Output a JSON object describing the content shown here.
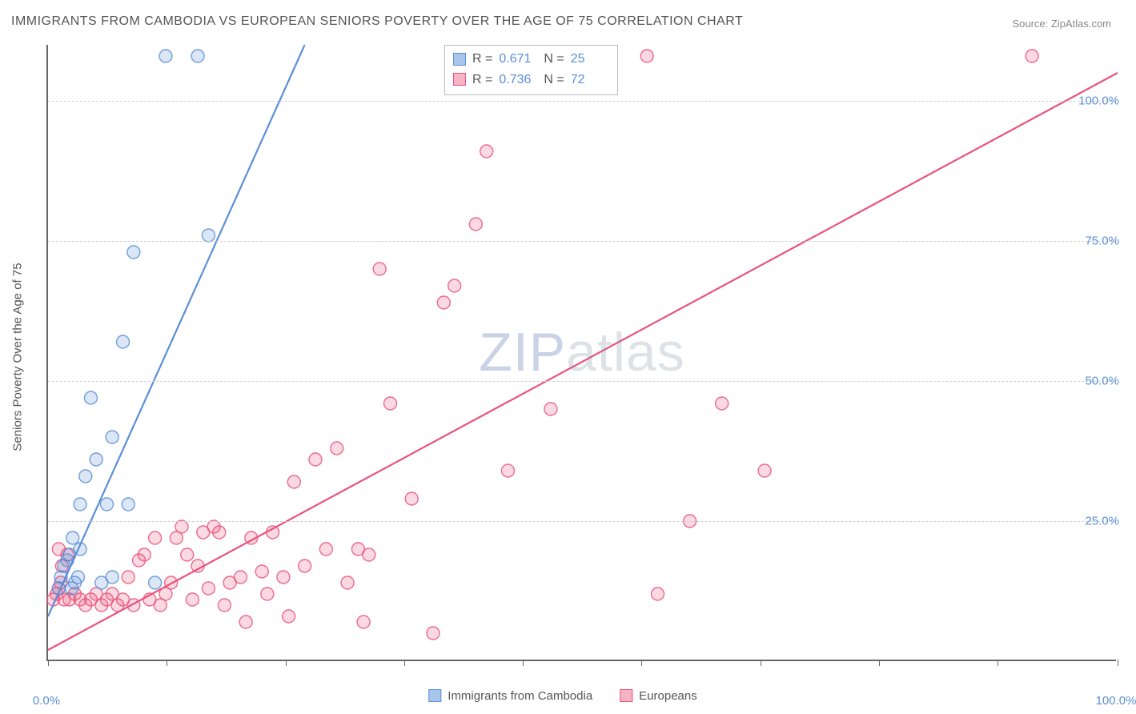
{
  "title": "IMMIGRANTS FROM CAMBODIA VS EUROPEAN SENIORS POVERTY OVER THE AGE OF 75 CORRELATION CHART",
  "source_label": "Source: ZipAtlas.com",
  "watermark": "ZIPatlas",
  "y_axis_label": "Seniors Poverty Over the Age of 75",
  "chart": {
    "type": "scatter",
    "xlim": [
      0,
      100
    ],
    "ylim": [
      0,
      110
    ],
    "xtick_positions": [
      0,
      11.1,
      22.2,
      33.3,
      44.4,
      55.5,
      66.6,
      77.7,
      88.8,
      100
    ],
    "xtick_labels_shown": {
      "0": "0.0%",
      "100": "100.0%"
    },
    "ytick_positions": [
      25,
      50,
      75,
      100
    ],
    "ytick_labels": [
      "25.0%",
      "50.0%",
      "75.0%",
      "100.0%"
    ],
    "grid_color": "#d0d0d0",
    "axis_color": "#666666",
    "background_color": "#ffffff",
    "tick_label_color": "#5b8fd6",
    "marker_radius": 8,
    "marker_fill_opacity": 0.22,
    "marker_stroke_opacity": 0.85,
    "marker_stroke_width": 1.4,
    "line_width": 2.2
  },
  "series": [
    {
      "name": "Immigrants from Cambodia",
      "color": "#5b8fd6",
      "fill": "#a8c5ec",
      "r_value": "0.671",
      "n_value": "25",
      "trend_line": {
        "x1": 0,
        "y1": 8,
        "x2": 24,
        "y2": 110
      },
      "points": [
        [
          1,
          13
        ],
        [
          1.2,
          15
        ],
        [
          1.5,
          17
        ],
        [
          1.8,
          18
        ],
        [
          2,
          19
        ],
        [
          2.2,
          13
        ],
        [
          2.5,
          14
        ],
        [
          2.8,
          15
        ],
        [
          3,
          28
        ],
        [
          3,
          20
        ],
        [
          3.5,
          33
        ],
        [
          4,
          47
        ],
        [
          5,
          14
        ],
        [
          5.5,
          28
        ],
        [
          6,
          40
        ],
        [
          6,
          15
        ],
        [
          7,
          57
        ],
        [
          7.5,
          28
        ],
        [
          8,
          73
        ],
        [
          10,
          14
        ],
        [
          11,
          108
        ],
        [
          14,
          108
        ],
        [
          15,
          76
        ],
        [
          4.5,
          36
        ],
        [
          2.3,
          22
        ]
      ]
    },
    {
      "name": "Europeans",
      "color": "#e9537b",
      "fill": "#f5b3c4",
      "r_value": "0.736",
      "n_value": "72",
      "trend_line": {
        "x1": 0,
        "y1": 2,
        "x2": 100,
        "y2": 105
      },
      "points": [
        [
          0.5,
          11
        ],
        [
          0.8,
          12
        ],
        [
          1,
          13
        ],
        [
          1,
          20
        ],
        [
          1.2,
          14
        ],
        [
          1.5,
          11
        ],
        [
          1.8,
          19
        ],
        [
          2,
          11
        ],
        [
          2.5,
          12
        ],
        [
          3,
          11
        ],
        [
          3.5,
          10
        ],
        [
          4,
          11
        ],
        [
          4.5,
          12
        ],
        [
          5,
          10
        ],
        [
          5.5,
          11
        ],
        [
          6,
          12
        ],
        [
          6.5,
          10
        ],
        [
          7,
          11
        ],
        [
          7.5,
          15
        ],
        [
          8,
          10
        ],
        [
          8.5,
          18
        ],
        [
          9,
          19
        ],
        [
          9.5,
          11
        ],
        [
          10,
          22
        ],
        [
          10.5,
          10
        ],
        [
          11,
          12
        ],
        [
          11.5,
          14
        ],
        [
          12,
          22
        ],
        [
          12.5,
          24
        ],
        [
          13,
          19
        ],
        [
          13.5,
          11
        ],
        [
          14,
          17
        ],
        [
          14.5,
          23
        ],
        [
          15,
          13
        ],
        [
          15.5,
          24
        ],
        [
          16,
          23
        ],
        [
          16.5,
          10
        ],
        [
          17,
          14
        ],
        [
          18,
          15
        ],
        [
          18.5,
          7
        ],
        [
          19,
          22
        ],
        [
          20,
          16
        ],
        [
          20.5,
          12
        ],
        [
          21,
          23
        ],
        [
          22,
          15
        ],
        [
          22.5,
          8
        ],
        [
          23,
          32
        ],
        [
          24,
          17
        ],
        [
          25,
          36
        ],
        [
          26,
          20
        ],
        [
          27,
          38
        ],
        [
          28,
          14
        ],
        [
          29,
          20
        ],
        [
          29.5,
          7
        ],
        [
          30,
          19
        ],
        [
          31,
          70
        ],
        [
          32,
          46
        ],
        [
          34,
          29
        ],
        [
          36,
          5
        ],
        [
          37,
          64
        ],
        [
          38,
          67
        ],
        [
          40,
          78
        ],
        [
          41,
          91
        ],
        [
          43,
          34
        ],
        [
          47,
          45
        ],
        [
          56,
          108
        ],
        [
          57,
          12
        ],
        [
          60,
          25
        ],
        [
          63,
          46
        ],
        [
          67,
          34
        ],
        [
          92,
          108
        ],
        [
          1.3,
          17
        ]
      ]
    }
  ],
  "stats_box": {
    "r_label": "R",
    "n_label": "N",
    "equals": "="
  },
  "legend": {
    "series1_label": "Immigrants from Cambodia",
    "series2_label": "Europeans"
  }
}
